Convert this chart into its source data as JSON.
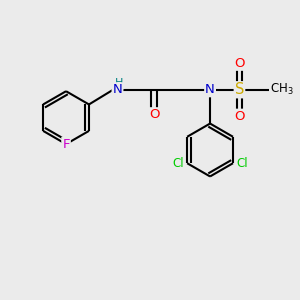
{
  "bg_color": "#ebebeb",
  "bond_color": "#000000",
  "bond_width": 1.5,
  "atom_colors": {
    "C": "#000000",
    "N": "#0000cd",
    "O": "#ff0000",
    "F": "#cc00cc",
    "Cl": "#00cc00",
    "S": "#ccaa00",
    "H": "#008080"
  },
  "font_size": 8.5,
  "figsize": [
    3.0,
    3.0
  ],
  "dpi": 100
}
